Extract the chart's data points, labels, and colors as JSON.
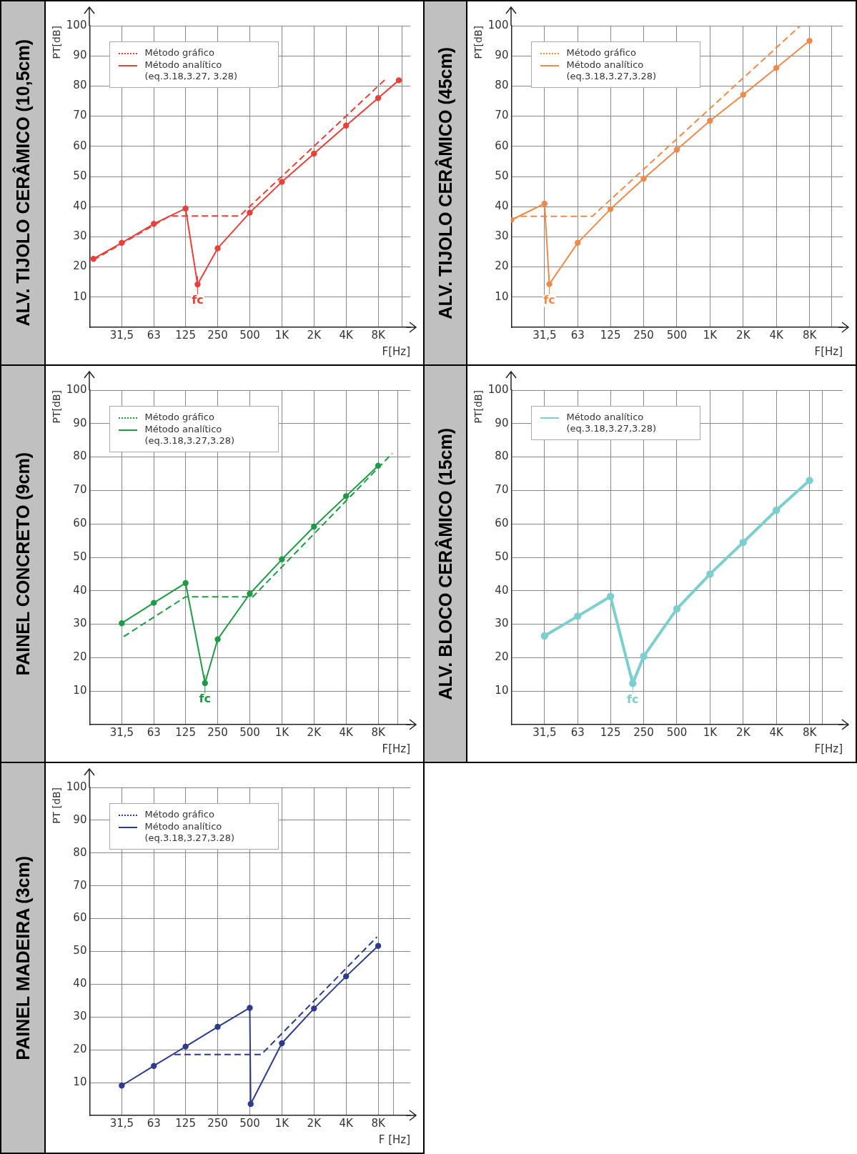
{
  "chart_data": [
    {
      "type": "line",
      "title": "ALV. TIJOLO CERÂMICO (10,5cm)",
      "xlabel": "F[Hz]",
      "ylabel": "PT[dB]",
      "log": "x",
      "xlim": [
        15.75,
        16000
      ],
      "xticks": [
        {
          "value": 31.5,
          "label": "31,5"
        },
        63,
        125,
        250,
        500,
        {
          "value": 1000,
          "label": "1K"
        },
        {
          "value": 2000,
          "label": "2K"
        },
        {
          "value": 4000,
          "label": "4K"
        },
        {
          "value": 8000,
          "label": "8K"
        },
        {
          "value": 13400,
          "label": null
        }
      ],
      "ylim": [
        0,
        100
      ],
      "yticks": [
        10,
        20,
        30,
        40,
        50,
        60,
        70,
        80,
        90,
        100
      ],
      "grid": true,
      "legend": "top left",
      "annotations": [
        {
          "text": "fc",
          "x": 162,
          "y": 14.2
        }
      ],
      "series": [
        {
          "name": "Método gráfico",
          "color": "#e8413a",
          "line_style": "dashed",
          "marker": "none",
          "x": [
            17.1,
            89,
            401,
            9390
          ],
          "values": [
            22.3,
            36.9,
            36.9,
            82.3
          ]
        },
        {
          "name": "Método analítico (eq.3.18,3.27, 3.28)",
          "color": "#e8413a",
          "line_style": "solid",
          "marker": "circle",
          "x": [
            17.1,
            31.5,
            63,
            125,
            162,
            250,
            500,
            1000,
            2000,
            4000,
            8000,
            12500
          ],
          "values": [
            22.7,
            28,
            34.3,
            39.4,
            14.2,
            26.2,
            38,
            48.2,
            57.6,
            66.9,
            76,
            81.9
          ]
        }
      ]
    },
    {
      "type": "line",
      "title": "ALV. TIJOLO CERÂMICO (45cm)",
      "xlabel": "F[Hz]",
      "ylabel": "PT[dB]",
      "log": "x",
      "xlim": [
        15.75,
        16000
      ],
      "xticks": [
        {
          "value": 31.5,
          "label": "31,5"
        },
        63,
        125,
        250,
        500,
        {
          "value": 1000,
          "label": "1K"
        },
        {
          "value": 2000,
          "label": "2K"
        },
        {
          "value": 4000,
          "label": "4K"
        },
        {
          "value": 8000,
          "label": "8K"
        },
        {
          "value": 12740,
          "label": null
        }
      ],
      "ylim": [
        0,
        100
      ],
      "yticks": [
        10,
        20,
        30,
        40,
        50,
        60,
        70,
        80,
        90,
        100
      ],
      "grid": true,
      "legend": "top left",
      "annotations": [
        {
          "text": "fc",
          "x": 34.8,
          "y": 14.3
        }
      ],
      "series": [
        {
          "name": "Método gráfico",
          "color": "#f08a4b",
          "line_style": "dashed",
          "marker": "none",
          "x": [
            15.75,
            18.7,
            85.5,
            6600
          ],
          "values": [
            35.6,
            36.8,
            36.8,
            100
          ]
        },
        {
          "name": "Método analítico (eq.3.18,3.27,3.28)",
          "color": "#f08a4b",
          "line_style": "solid",
          "marker": "circle",
          "x": [
            15.75,
            31.5,
            34.8,
            63,
            125,
            250,
            500,
            1000,
            2000,
            4000,
            8000
          ],
          "values": [
            35.6,
            41,
            14.3,
            28,
            39.2,
            49.3,
            58.9,
            68.5,
            77.1,
            86,
            95
          ]
        }
      ]
    },
    {
      "type": "line",
      "title": "PAINEL CONCRETO (9cm)",
      "xlabel": "F[Hz]",
      "ylabel": "PT[dB]",
      "log": "x",
      "xlim": [
        15.75,
        16000
      ],
      "xticks": [
        {
          "value": 31.5,
          "label": "31,5"
        },
        63,
        125,
        250,
        500,
        {
          "value": 1000,
          "label": "1K"
        },
        {
          "value": 2000,
          "label": "2K"
        },
        {
          "value": 4000,
          "label": "4K"
        },
        {
          "value": 8000,
          "label": "8K"
        },
        {
          "value": 12130,
          "label": null
        }
      ],
      "ylim": [
        0,
        100
      ],
      "yticks": [
        10,
        20,
        30,
        40,
        50,
        60,
        70,
        80,
        90,
        100
      ],
      "grid": true,
      "legend": "top left",
      "annotations": [
        {
          "text": "fc",
          "x": 190,
          "y": 12.4
        }
      ],
      "series": [
        {
          "name": "Método gráfico",
          "color": "#1f9a45",
          "line_style": "dashed",
          "marker": "none",
          "x": [
            32.8,
            125,
            533,
            10860
          ],
          "values": [
            26.3,
            38.2,
            38.2,
            81.1
          ]
        },
        {
          "name": "Método analítico (eq.3.18,3.27,3.28)",
          "color": "#1f9a45",
          "line_style": "solid",
          "marker": "circle",
          "x": [
            31.5,
            63,
            125,
            190,
            250,
            500,
            1000,
            2000,
            4000,
            8000
          ],
          "values": [
            30.3,
            36.4,
            42.3,
            12.4,
            25.5,
            39.1,
            49.4,
            59.2,
            68.3,
            77.4
          ]
        }
      ]
    },
    {
      "type": "line",
      "title": "ALV. BLOCO CERÂMICO (15cm)",
      "xlabel": "F[Hz]",
      "ylabel": "PT[dB]",
      "log": "x",
      "xlim": [
        15.75,
        16000
      ],
      "xticks": [
        {
          "value": 31.5,
          "label": "31,5"
        },
        63,
        125,
        250,
        500,
        {
          "value": 1000,
          "label": "1K"
        },
        {
          "value": 2000,
          "label": "2K"
        },
        {
          "value": 4000,
          "label": "4K"
        },
        {
          "value": 8000,
          "label": "8K"
        },
        {
          "value": 10490,
          "label": null
        }
      ],
      "ylim": [
        0,
        100
      ],
      "yticks": [
        10,
        20,
        30,
        40,
        50,
        60,
        70,
        80,
        90,
        100
      ],
      "grid": true,
      "legend": "top left",
      "annotations": [
        {
          "text": "fc",
          "x": 199,
          "y": 12.3
        }
      ],
      "series": [
        {
          "name": "Método analítico (eq.3.18,3.27,3.28)",
          "color": "#7ccfcf",
          "line_style": "solid",
          "marker": "circle",
          "x": [
            31.5,
            63,
            125,
            199,
            250,
            500,
            1000,
            2000,
            4000,
            8000
          ],
          "values": [
            26.5,
            32.4,
            38.3,
            12.3,
            20.4,
            34.6,
            45,
            54.5,
            64.1,
            73
          ]
        }
      ]
    },
    {
      "type": "line",
      "title": "PAINEL MADEIRA (3cm)",
      "xlabel": "F [Hz]",
      "ylabel": "PT [dB]",
      "log": "x",
      "xlim": [
        15.75,
        16000
      ],
      "xticks": [
        {
          "value": 31.5,
          "label": "31,5"
        },
        63,
        125,
        250,
        500,
        {
          "value": 1000,
          "label": "1K"
        },
        {
          "value": 2000,
          "label": "2K"
        },
        {
          "value": 4000,
          "label": "4K"
        },
        {
          "value": 8000,
          "label": "8K"
        },
        {
          "value": 11090,
          "label": null
        }
      ],
      "ylim": [
        0,
        100
      ],
      "yticks": [
        10,
        20,
        30,
        40,
        50,
        60,
        70,
        80,
        90,
        100
      ],
      "grid": true,
      "legend": "top left",
      "series": [
        {
          "name": "Método gráfico",
          "color": "#2e3a8c",
          "line_style": "dashed",
          "marker": "none",
          "x": [
            98,
            642,
            7790
          ],
          "values": [
            18.6,
            18.6,
            54.4
          ]
        },
        {
          "name": "Método analítico (eq.3.18,3.27,3.28)",
          "color": "#2e3a8c",
          "line_style": "solid",
          "marker": "circle",
          "x": [
            31.5,
            63,
            125,
            250,
            500,
            510,
            1000,
            2000,
            4000,
            8000
          ],
          "values": [
            9.1,
            15.1,
            21,
            27,
            32.8,
            3.5,
            22,
            32.6,
            42.4,
            51.7
          ]
        }
      ]
    }
  ]
}
